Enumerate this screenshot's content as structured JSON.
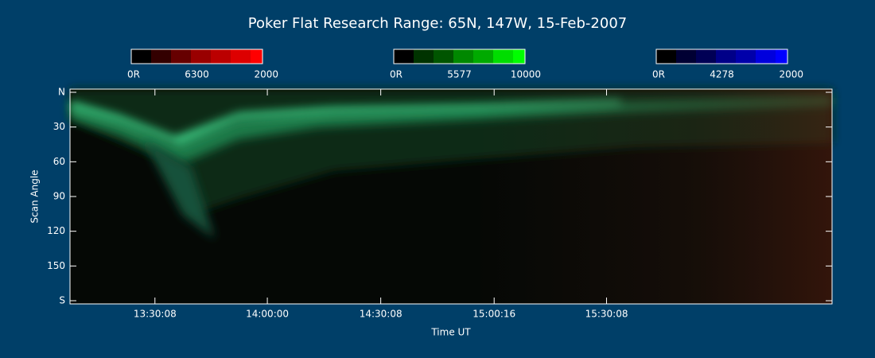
{
  "chart_data": {
    "type": "keogram",
    "title": "Poker Flat Research Range: 65N, 147W, 15-Feb-2007",
    "xlabel": "Time UT",
    "ylabel": "Scan Angle",
    "colorbars": [
      {
        "labels": [
          "0R",
          "6300",
          "2000"
        ],
        "colors": [
          "#000000",
          "#330000",
          "#660000",
          "#990000",
          "#bb0000",
          "#dd0000",
          "#ff0000"
        ]
      },
      {
        "labels": [
          "0R",
          "5577",
          "10000"
        ],
        "colors": [
          "#000000",
          "#003300",
          "#005500",
          "#008800",
          "#00aa00",
          "#00dd00",
          "#00ff00"
        ]
      },
      {
        "labels": [
          "0R",
          "4278",
          "2000"
        ],
        "colors": [
          "#000000",
          "#000033",
          "#000055",
          "#000088",
          "#0000aa",
          "#0000dd",
          "#0000ff"
        ]
      }
    ],
    "xlim": [
      47254,
      59403
    ],
    "xticks": [
      {
        "value": 48608,
        "label": "13:30:08"
      },
      {
        "value": 50400,
        "label": "14:00:00"
      },
      {
        "value": 52208,
        "label": "14:30:08"
      },
      {
        "value": 54016,
        "label": "15:00:16"
      },
      {
        "value": 55808,
        "label": "15:30:08"
      }
    ],
    "ylim": [
      0,
      180
    ],
    "yticks": [
      {
        "value": 0,
        "label": "N"
      },
      30,
      60,
      90,
      120,
      150,
      {
        "value": 180,
        "label": "S"
      }
    ]
  }
}
